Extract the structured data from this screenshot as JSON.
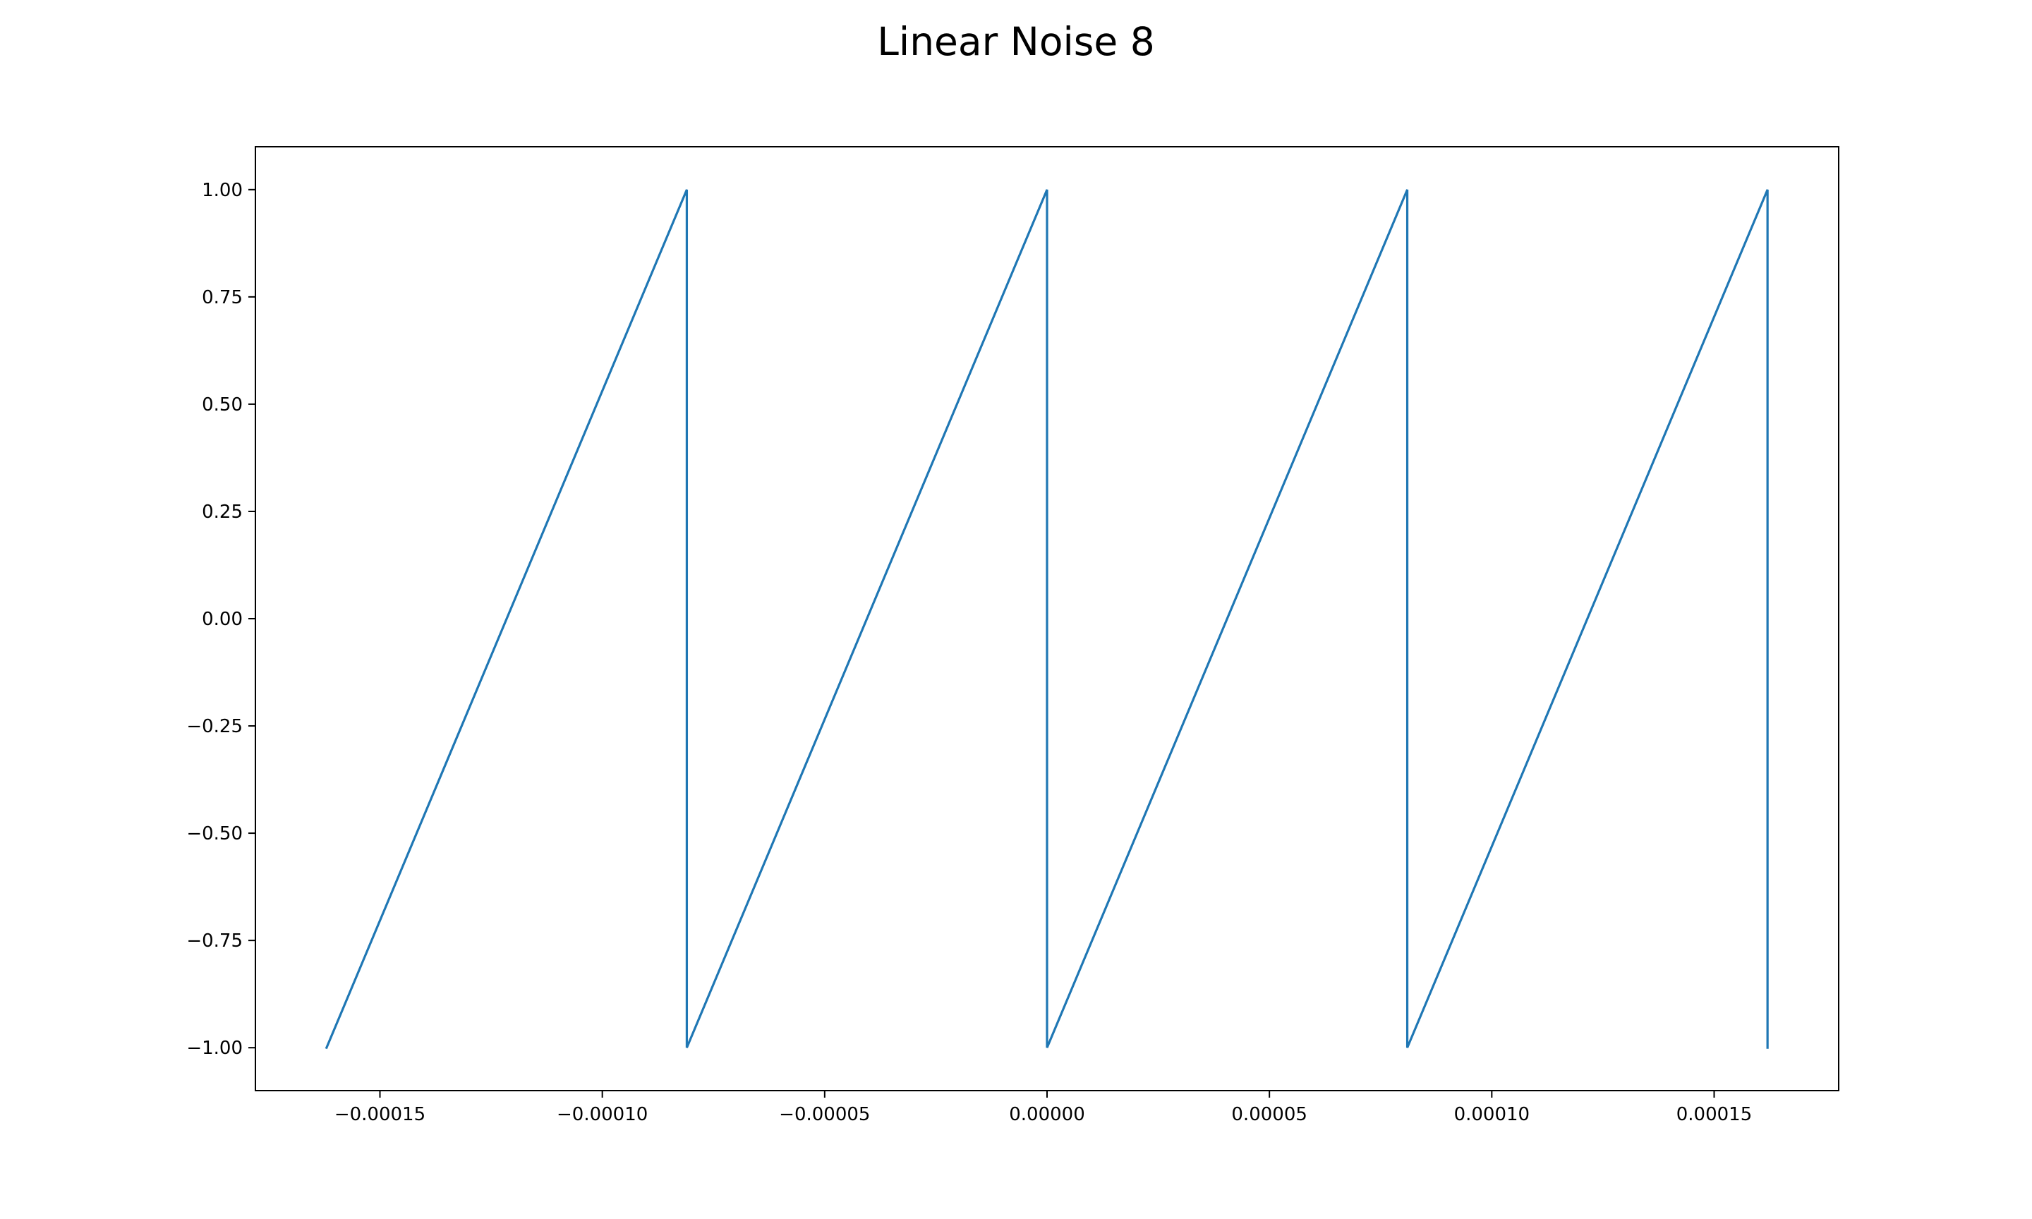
{
  "chart_data": {
    "type": "line",
    "title": "Linear Noise 8",
    "xlabel": "",
    "ylabel": "",
    "xlim": [
      -0.000178,
      0.000178
    ],
    "ylim": [
      -1.1,
      1.1
    ],
    "x_ticks": [
      -0.00015,
      -0.0001,
      -5e-05,
      0.0,
      5e-05,
      0.0001,
      0.00015
    ],
    "x_tick_labels": [
      "−0.00015",
      "−0.00010",
      "−0.00005",
      "0.00000",
      "0.00005",
      "0.00010",
      "0.00015"
    ],
    "y_ticks": [
      1.0,
      0.75,
      0.5,
      0.25,
      0.0,
      -0.25,
      -0.5,
      -0.75,
      -1.0
    ],
    "y_tick_labels": [
      "1.00",
      "0.75",
      "0.50",
      "0.25",
      "0.00",
      "−0.25",
      "−0.50",
      "−0.75",
      "−1.00"
    ],
    "grid": false,
    "series": [
      {
        "color": "#1f77b4",
        "x": [
          -0.000162,
          -8.1e-05,
          -8.1e-05,
          0.0,
          0.0,
          8.1e-05,
          8.1e-05,
          0.000162,
          0.000162
        ],
        "y": [
          -1.0,
          1.0,
          -1.0,
          1.0,
          -1.0,
          1.0,
          -1.0,
          1.0,
          -1.0
        ]
      }
    ]
  }
}
